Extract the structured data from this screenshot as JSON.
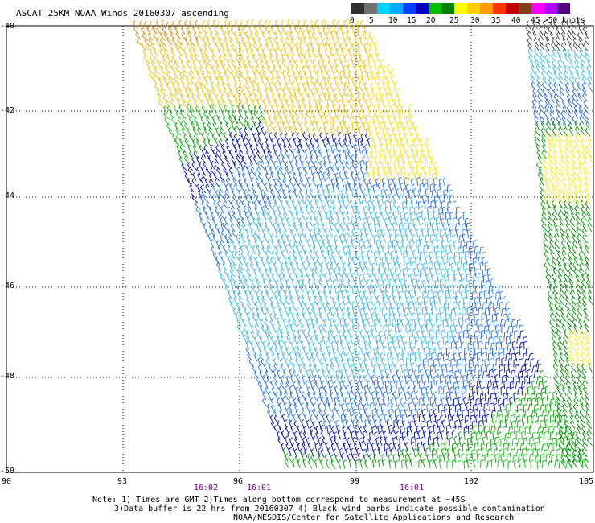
{
  "title": "ASCAT 25KM NOAA Winds 20160307 ascending",
  "legend": {
    "colors": [
      "#303030",
      "#707070",
      "#00d0ff",
      "#00aaff",
      "#0040ff",
      "#0000c0",
      "#00c000",
      "#008000",
      "#ffff00",
      "#ffcc00",
      "#ff9900",
      "#ff3300",
      "#c00000",
      "#804020",
      "#ff00ff",
      "#b000ff",
      "#500080"
    ],
    "labels": [
      "0",
      "5",
      "10",
      "15",
      "20",
      "25",
      "30",
      "35",
      "40",
      "45",
      ">50 knots"
    ]
  },
  "map": {
    "lat_ticks": [
      "-40",
      "-42",
      "-44",
      "-46",
      "-48",
      "-50"
    ],
    "lon_ticks": [
      "90",
      "93",
      "96",
      "99",
      "102",
      "105"
    ],
    "times": [
      "16:02",
      "16:01",
      "16:01"
    ]
  },
  "notes": {
    "line1": "Note: 1) Times are GMT 2)Times along bottom correspond to measurement at ~45S",
    "line2": "3)Data buffer is 22 hrs from 20160307 4) Black wind barbs indicate possible contamination",
    "line3": "NOAA/NESDIS/Center for Satellite Applications and Research"
  }
}
